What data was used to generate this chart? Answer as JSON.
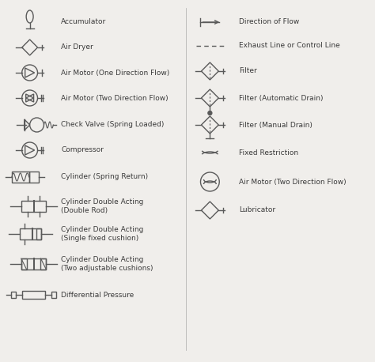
{
  "bg_color": "#f0eeeb",
  "line_color": "#5a5a5a",
  "text_color": "#3a3a3a",
  "font_size": 6.5,
  "left_labels": [
    "Accumulator",
    "Air Dryer",
    "Air Motor (One Direction Flow)",
    "Air Motor (Two Direction Flow)",
    "Check Valve (Spring Loaded)",
    "Compressor",
    "Cylinder (Spring Return)",
    "Cylinder Double Acting\n(Double Rod)",
    "Cylinder Double Acting\n(Single fixed cushion)",
    "Cylinder Double Acting\n(Two adjustable cushions)",
    "Differential Pressure"
  ],
  "right_labels": [
    "Direction of Flow",
    "Exhaust Line or Control Line",
    "Filter",
    "Filter (Automatic Drain)",
    "Filter (Manual Drain)",
    "Fixed Restriction",
    "Air Motor (Two Direction Flow)",
    "Lubricator"
  ]
}
